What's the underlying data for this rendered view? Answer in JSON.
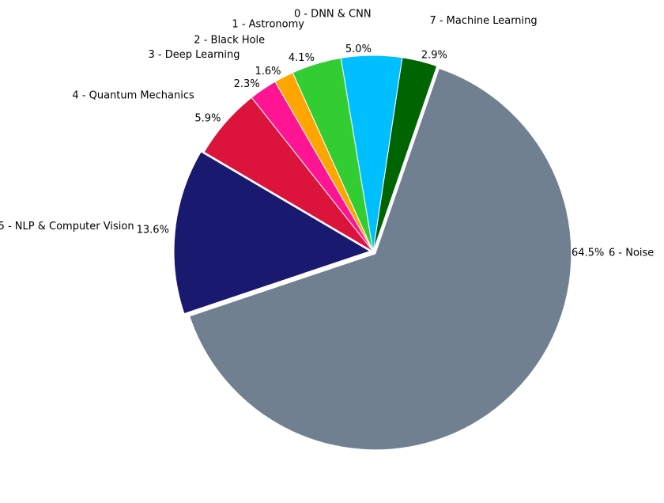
{
  "chart_data": {
    "type": "pie",
    "title": "",
    "legend": "none",
    "slices": [
      {
        "label": "7 - Machine Learning",
        "value": 2.9,
        "display": "2.9%",
        "color": "#006400"
      },
      {
        "label": "0 - DNN & CNN",
        "value": 5.0,
        "display": "5.0%",
        "color": "#00BFFF"
      },
      {
        "label": "1 - Astronomy",
        "value": 4.1,
        "display": "4.1%",
        "color": "#32CD32"
      },
      {
        "label": "2 - Black Hole",
        "value": 1.6,
        "display": "1.6%",
        "color": "#FFA500"
      },
      {
        "label": "3 - Deep Learning",
        "value": 2.3,
        "display": "2.3%",
        "color": "#FF1493"
      },
      {
        "label": "4 - Quantum Mechanics",
        "value": 5.9,
        "display": "5.9%",
        "color": "#DC143C"
      },
      {
        "label": "5 - NLP & Computer Vision",
        "value": 13.6,
        "display": "13.6%",
        "color": "#191970"
      },
      {
        "label": "6 - Noise",
        "value": 64.5,
        "display": "64.5%",
        "color": "#708090"
      }
    ]
  }
}
